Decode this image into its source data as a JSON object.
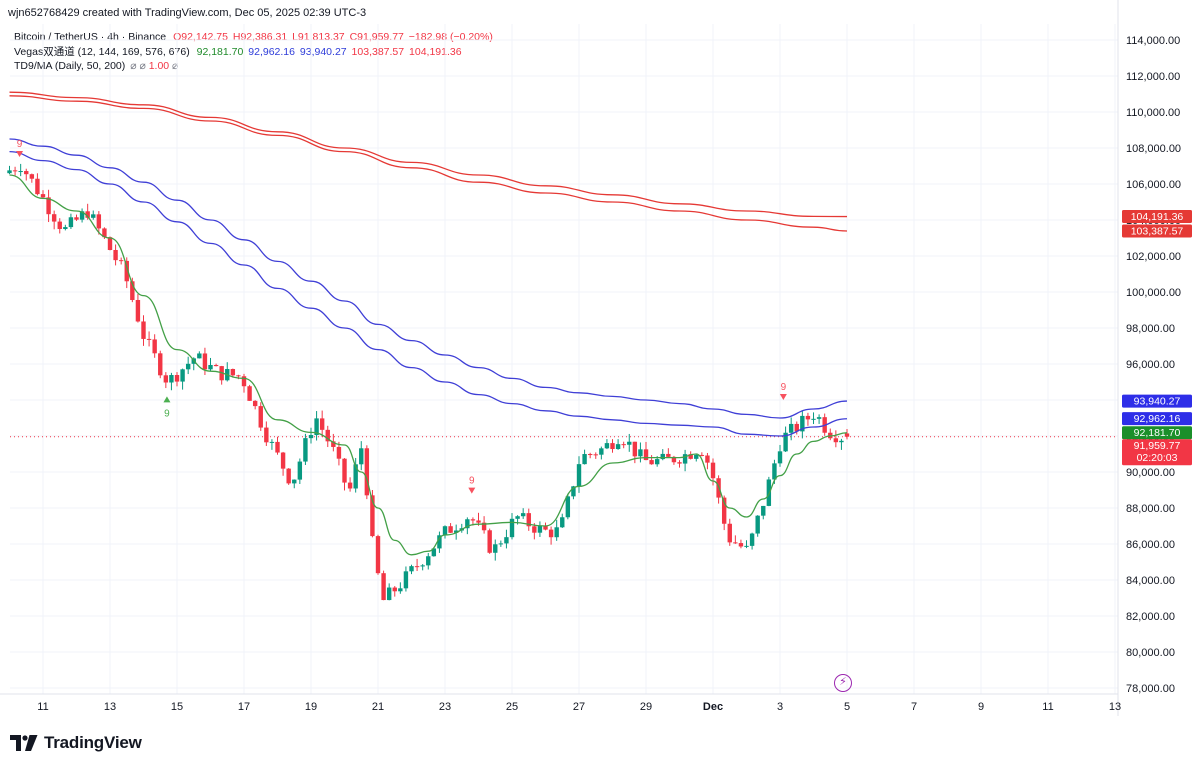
{
  "header": {
    "creator": "wjn652768429 created with TradingView.com, Dec 05, 2025 02:39 UTC-3"
  },
  "legend": {
    "symbol": "Bitcoin / TetherUS · 4h · Binance",
    "ohlc": {
      "o": "O92,142.75",
      "h": "H92,386.31",
      "l": "L91,813.37",
      "c": "C91,959.77",
      "chg": "−182.98 (−0.20%)"
    },
    "vegas": {
      "label": "Vegas双通道 (12, 144, 169, 576, 676)",
      "values": [
        "92,181.70",
        "92,962.16",
        "93,940.27",
        "103,387.57",
        "104,191.36"
      ]
    },
    "td9": {
      "label": "TD9/MA (Daily, 50, 200)",
      "value": "1.00"
    }
  },
  "colors": {
    "up": "#089981",
    "down": "#f23645",
    "ema_fast": "#43a047",
    "ema_mid": "#3f3fd6",
    "ema_slow": "#e53935",
    "grid": "#f0f3fa",
    "text": "#131722"
  },
  "chart_data": {
    "type": "candlestick",
    "title": "Bitcoin / TetherUS · 4h · Binance",
    "ylim": [
      77400,
      115000
    ],
    "y_ticks": [
      "114,000.00",
      "112,000.00",
      "110,000.00",
      "108,000.00",
      "106,000.00",
      "104,000.00",
      "102,000.00",
      "100,000.00",
      "98,000.00",
      "96,000.00",
      "94,000.00",
      "92,000.00",
      "90,000.00",
      "88,000.00",
      "86,000.00",
      "84,000.00",
      "82,000.00",
      "80,000.00",
      "78,000.00"
    ],
    "y_tick_values": [
      114000,
      112000,
      110000,
      108000,
      106000,
      104000,
      102000,
      100000,
      98000,
      96000,
      94000,
      92000,
      90000,
      88000,
      86000,
      84000,
      82000,
      80000,
      78000
    ],
    "x_ticks": [
      {
        "label": "11",
        "day": 11
      },
      {
        "label": "13",
        "day": 13
      },
      {
        "label": "15",
        "day": 15
      },
      {
        "label": "17",
        "day": 17
      },
      {
        "label": "19",
        "day": 19
      },
      {
        "label": "21",
        "day": 21
      },
      {
        "label": "23",
        "day": 23
      },
      {
        "label": "25",
        "day": 25
      },
      {
        "label": "27",
        "day": 27
      },
      {
        "label": "29",
        "day": 29
      },
      {
        "label": "Dec",
        "day": 31
      },
      {
        "label": "3",
        "day": 33
      },
      {
        "label": "5",
        "day": 35
      },
      {
        "label": "7",
        "day": 37
      },
      {
        "label": "9",
        "day": 39
      },
      {
        "label": "11",
        "day": 41
      },
      {
        "label": "13",
        "day": 43
      }
    ],
    "price_key_days": [
      10,
      10.5,
      11.8,
      12.5,
      13.6,
      14.2,
      14.9,
      15.7,
      16.4,
      17.1,
      17.9,
      18.6,
      19.3,
      19.8,
      20.3,
      20.7,
      21.0,
      21.3,
      21.9,
      22.6,
      23.2,
      23.9,
      24.6,
      25.3,
      26.1,
      26.6,
      27.2,
      27.9,
      28.4,
      29.1,
      29.7,
      30.4,
      30.8,
      31.1,
      31.6,
      32.2,
      32.7,
      33.2,
      33.8,
      34.2,
      34.6,
      35.0
    ],
    "price_key_vals": [
      106600,
      107100,
      103400,
      104500,
      101000,
      97400,
      95000,
      96400,
      95500,
      95300,
      91800,
      89400,
      93100,
      91300,
      88800,
      91600,
      86000,
      82800,
      83900,
      85400,
      86700,
      87600,
      85600,
      87500,
      86700,
      86700,
      90800,
      91300,
      92100,
      90600,
      90600,
      91000,
      91400,
      90200,
      86400,
      85600,
      88500,
      91800,
      92700,
      93300,
      92300,
      91960
    ],
    "candle_step_days": 0.16667,
    "last_candle": {
      "o": 92142.75,
      "h": 92386.31,
      "l": 91813.37,
      "c": 91959.77
    },
    "series": [
      {
        "name": "EMA 12",
        "color": "#43a047",
        "x": [
          10,
          11,
          12,
          13,
          14,
          15,
          16,
          17,
          18,
          19,
          20,
          20.5,
          21,
          21.5,
          22,
          22.5,
          23,
          24,
          25,
          26,
          27,
          28,
          29,
          30,
          30.5,
          31,
          31.5,
          32,
          32.5,
          33,
          33.5,
          34,
          34.5,
          35
        ],
        "y": [
          106500,
          105200,
          104500,
          103000,
          99800,
          96800,
          95600,
          95200,
          92900,
          92200,
          91500,
          90000,
          88000,
          86200,
          85400,
          85600,
          86500,
          87100,
          87200,
          87000,
          89200,
          90500,
          90800,
          90800,
          91000,
          89500,
          88000,
          87500,
          88500,
          89800,
          91000,
          91700,
          92000,
          92180
        ]
      },
      {
        "name": "EMA 144",
        "color": "#3f3fd6",
        "x": [
          10,
          11,
          12,
          13,
          14,
          15,
          16,
          17,
          18,
          19,
          20,
          21,
          22,
          23,
          24,
          25,
          26,
          27,
          28,
          29,
          30,
          31,
          32,
          33,
          34,
          35
        ],
        "y": [
          107800,
          107300,
          106800,
          106000,
          105000,
          103900,
          102700,
          101500,
          100200,
          99100,
          98000,
          96800,
          95800,
          95000,
          94300,
          93800,
          93400,
          93100,
          92900,
          92700,
          92600,
          92500,
          92100,
          92000,
          92500,
          92960
        ]
      },
      {
        "name": "EMA 169",
        "color": "#3f3fd6",
        "x": [
          10,
          11,
          12,
          13,
          14,
          15,
          16,
          17,
          18,
          19,
          20,
          21,
          22,
          23,
          24,
          25,
          26,
          27,
          28,
          29,
          30,
          31,
          32,
          33,
          34,
          35
        ],
        "y": [
          108500,
          108100,
          107600,
          106900,
          106100,
          105100,
          104000,
          102900,
          101700,
          100600,
          99500,
          98200,
          97300,
          96500,
          95800,
          95200,
          94700,
          94400,
          94200,
          94000,
          93800,
          93500,
          93200,
          93000,
          93500,
          93940
        ]
      },
      {
        "name": "EMA 576",
        "color": "#e53935",
        "x": [
          10,
          12,
          14,
          16,
          18,
          20,
          22,
          24,
          26,
          28,
          30,
          32,
          34,
          35
        ],
        "y": [
          110900,
          110600,
          110200,
          109500,
          108700,
          107800,
          106900,
          106100,
          105500,
          105000,
          104500,
          104000,
          103600,
          103390
        ]
      },
      {
        "name": "EMA 676",
        "color": "#e53935",
        "x": [
          10,
          12,
          14,
          16,
          18,
          20,
          22,
          24,
          26,
          28,
          30,
          32,
          34,
          35
        ],
        "y": [
          111100,
          110800,
          110400,
          109700,
          108900,
          108000,
          107200,
          106500,
          105900,
          105400,
          104900,
          104500,
          104200,
          104190
        ]
      }
    ],
    "annotations": [
      {
        "text": "9",
        "day": 10.3,
        "price": 107500,
        "type": "sell"
      },
      {
        "text": "9",
        "day": 14.7,
        "price": 94200,
        "type": "buy"
      },
      {
        "text": "9",
        "day": 23.8,
        "price": 88800,
        "type": "sell"
      },
      {
        "text": "9",
        "day": 33.1,
        "price": 94000,
        "type": "sell"
      }
    ],
    "price_labels": [
      {
        "text": "104,191.36",
        "price": 104191.36,
        "color": "#e53935"
      },
      {
        "text": "103,387.57",
        "price": 103387.57,
        "color": "#e53935"
      },
      {
        "text": "93,940.27",
        "price": 93940.27,
        "color": "#2e2ee8"
      },
      {
        "text": "92,962.16",
        "price": 92962.16,
        "color": "#2e2ee8"
      },
      {
        "text": "92,181.70",
        "price": 92181.7,
        "color": "#1b8f2a"
      },
      {
        "text": "91,959.77",
        "sub": "02:20:03",
        "price": 91959.77,
        "color": "#f23645"
      }
    ]
  },
  "footer": {
    "logo_text": "TradingView"
  }
}
